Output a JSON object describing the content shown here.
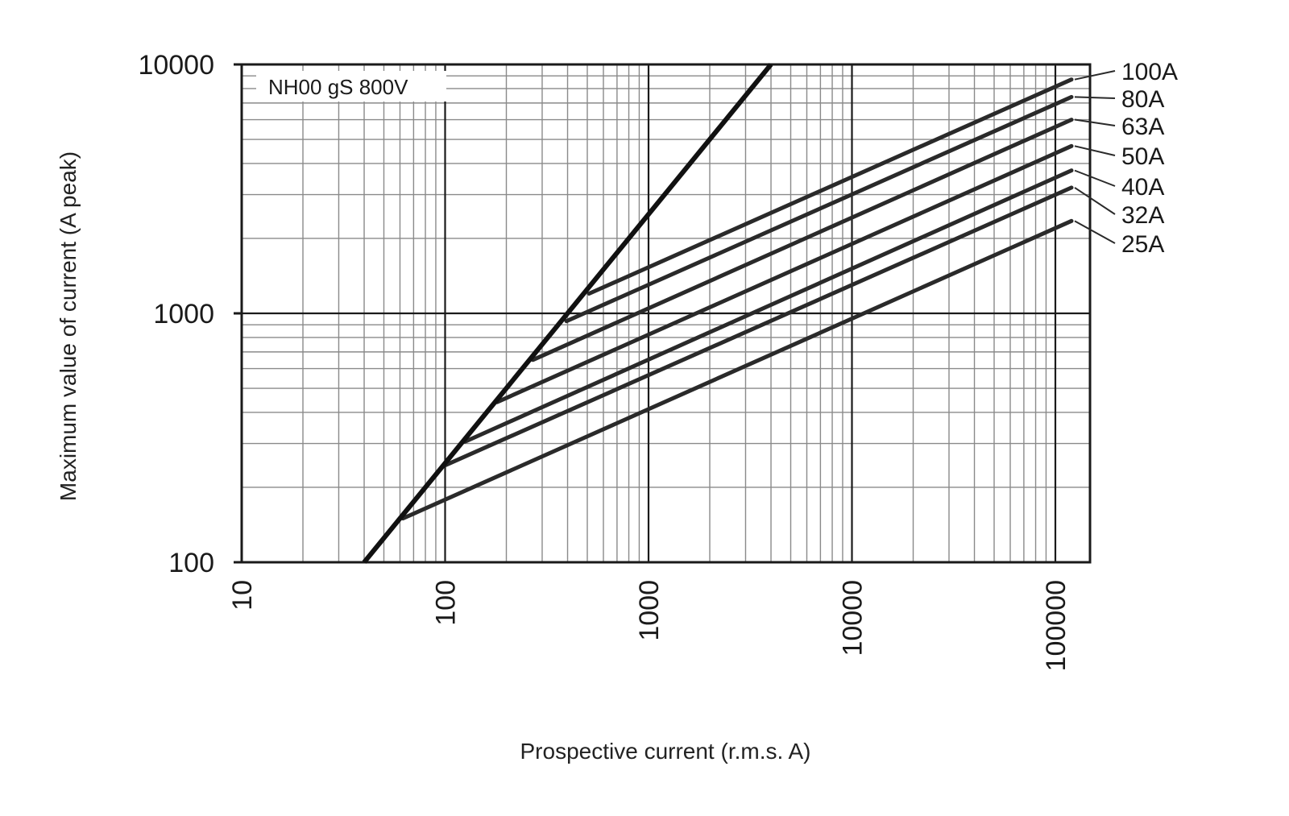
{
  "chart_data": {
    "type": "line",
    "title": "",
    "annotation": "NH00 gS 800V",
    "xlabel": "Prospective current (r.m.s. A)",
    "ylabel": "Maximum value of current (A peak)",
    "x_scale": "log",
    "y_scale": "log",
    "xlim": [
      10,
      150000
    ],
    "ylim": [
      100,
      10000
    ],
    "x_ticks": [
      "10",
      "100",
      "1000",
      "10000",
      "100000"
    ],
    "y_ticks": [
      "100",
      "1000",
      "10000"
    ],
    "grid": true,
    "legend": "right-side labels",
    "envelope": {
      "x": [
        40,
        4000
      ],
      "y": [
        100,
        10000
      ]
    },
    "series": [
      {
        "name": "100A",
        "x": [
          510,
          120000
        ],
        "y": [
          1200,
          8700
        ]
      },
      {
        "name": "80A",
        "x": [
          395,
          120000
        ],
        "y": [
          930,
          7400
        ]
      },
      {
        "name": "63A",
        "x": [
          270,
          120000
        ],
        "y": [
          650,
          6000
        ]
      },
      {
        "name": "50A",
        "x": [
          180,
          120000
        ],
        "y": [
          440,
          4700
        ]
      },
      {
        "name": "40A",
        "x": [
          125,
          120000
        ],
        "y": [
          305,
          3750
        ]
      },
      {
        "name": "32A",
        "x": [
          100,
          120000
        ],
        "y": [
          245,
          3200
        ]
      },
      {
        "name": "25A",
        "x": [
          62,
          120000
        ],
        "y": [
          150,
          2350
        ]
      }
    ],
    "colors": {
      "line": "#2a2a2a",
      "envelope": "#111111",
      "grid": "#8a8a8a",
      "frame": "#1a1a1a"
    }
  }
}
